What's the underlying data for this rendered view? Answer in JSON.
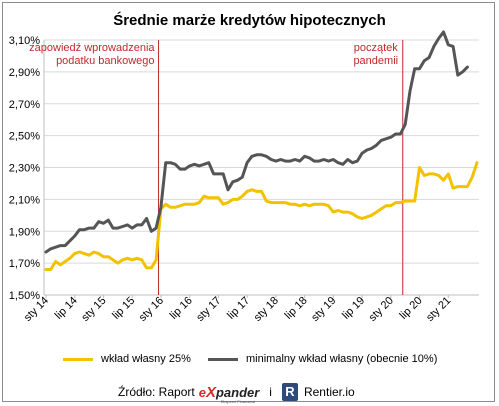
{
  "chart_data": {
    "type": "line",
    "title": "Średnie marże kredytów hipotecznych",
    "xlabel": "",
    "ylabel": "",
    "ylim": [
      1.5,
      3.1
    ],
    "yticks": [
      "1,50%",
      "1,70%",
      "1,90%",
      "2,10%",
      "2,30%",
      "2,50%",
      "2,70%",
      "2,90%",
      "3,10%"
    ],
    "grid": "horizontal",
    "legend_placement": "bottom",
    "x_start": "sty 14",
    "x_tick_labels": [
      "sty 14",
      "lip 14",
      "sty 15",
      "lip 15",
      "sty 16",
      "lip 16",
      "sty 17",
      "lip 17",
      "sty 18",
      "lip 18",
      "sty 19",
      "lip 19",
      "sty 20",
      "lip 20",
      "sty 21"
    ],
    "annotations": [
      {
        "text_lines": [
          "zapowiedź wprowadzenia",
          "podatku bankowego"
        ],
        "x_month_index": 23,
        "color": "#c0282a"
      },
      {
        "text_lines": [
          "początek",
          "pandemii"
        ],
        "x_month_index": 74,
        "color": "#c0282a"
      }
    ],
    "series": [
      {
        "name": "wkład własny 25%",
        "color": "#f2c200",
        "values": [
          1.66,
          1.66,
          1.71,
          1.69,
          1.71,
          1.73,
          1.76,
          1.77,
          1.76,
          1.75,
          1.77,
          1.76,
          1.74,
          1.74,
          1.72,
          1.7,
          1.72,
          1.73,
          1.72,
          1.73,
          1.72,
          1.67,
          1.67,
          1.72,
          2.04,
          2.07,
          2.05,
          2.05,
          2.06,
          2.07,
          2.07,
          2.07,
          2.08,
          2.12,
          2.11,
          2.11,
          2.11,
          2.07,
          2.08,
          2.1,
          2.1,
          2.12,
          2.15,
          2.16,
          2.15,
          2.15,
          2.09,
          2.08,
          2.08,
          2.08,
          2.08,
          2.07,
          2.07,
          2.06,
          2.07,
          2.06,
          2.07,
          2.07,
          2.07,
          2.06,
          2.02,
          2.03,
          2.02,
          2.02,
          2.01,
          1.99,
          1.98,
          1.99,
          2.0,
          2.02,
          2.04,
          2.06,
          2.06,
          2.08,
          2.08,
          2.09,
          2.09,
          2.09,
          2.3,
          2.25,
          2.26,
          2.26,
          2.25,
          2.22,
          2.26,
          2.17,
          2.18,
          2.18,
          2.18,
          2.24,
          2.33
        ]
      },
      {
        "name": "minimalny wkład własny (obecnie 10%)",
        "color": "#555555",
        "values": [
          1.77,
          1.79,
          1.8,
          1.81,
          1.81,
          1.84,
          1.87,
          1.91,
          1.91,
          1.92,
          1.92,
          1.96,
          1.95,
          1.97,
          1.92,
          1.92,
          1.93,
          1.94,
          1.92,
          1.94,
          1.94,
          1.98,
          1.9,
          1.92,
          2.05,
          2.33,
          2.33,
          2.32,
          2.29,
          2.29,
          2.31,
          2.32,
          2.31,
          2.32,
          2.33,
          2.26,
          2.26,
          2.26,
          2.16,
          2.21,
          2.22,
          2.24,
          2.33,
          2.37,
          2.38,
          2.38,
          2.37,
          2.35,
          2.34,
          2.35,
          2.34,
          2.34,
          2.35,
          2.34,
          2.37,
          2.36,
          2.34,
          2.34,
          2.35,
          2.34,
          2.35,
          2.33,
          2.32,
          2.35,
          2.33,
          2.34,
          2.39,
          2.41,
          2.42,
          2.44,
          2.47,
          2.48,
          2.49,
          2.51,
          2.51,
          2.57,
          2.78,
          2.92,
          2.92,
          2.97,
          2.99,
          3.06,
          3.11,
          3.15,
          3.07,
          3.06,
          2.88,
          2.9,
          2.93
        ]
      }
    ]
  },
  "legend": {
    "items": [
      {
        "label": "wkład własny 25%",
        "color": "#f2c200"
      },
      {
        "label": "minimalny wkład własny (obecnie 10%)",
        "color": "#555555"
      }
    ]
  },
  "source": {
    "label": "Źródło: Raport",
    "expander_logo": "expander",
    "expander_tagline": "Eksperci Finansowi",
    "and": "i",
    "rentier_icon": "R",
    "rentier_text": "Rentier.io"
  }
}
